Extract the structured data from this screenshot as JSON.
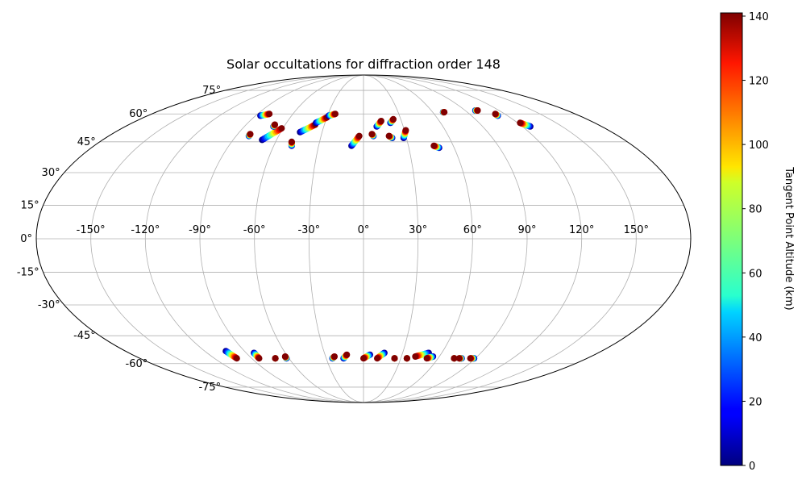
{
  "chart_data": {
    "type": "scatter",
    "projection": "mollweide",
    "title": "Solar occultations for diffraction order 148",
    "lon_tick_labels": [
      "-150°",
      "-120°",
      "-90°",
      "-60°",
      "-30°",
      "0°",
      "30°",
      "60°",
      "90°",
      "120°",
      "150°"
    ],
    "lon_ticks": [
      -150,
      -120,
      -90,
      -60,
      -30,
      0,
      30,
      60,
      90,
      120,
      150
    ],
    "lat_tick_labels": [
      "75°",
      "60°",
      "45°",
      "30°",
      "15°",
      "0°",
      "-15°",
      "-30°",
      "-45°",
      "-60°",
      "-75°"
    ],
    "lat_ticks": [
      75,
      60,
      45,
      30,
      15,
      0,
      -15,
      -30,
      -45,
      -60,
      -75
    ],
    "grid": true,
    "colormap": "jet",
    "colorbar": {
      "label": "Tangent Point Altitude (km)",
      "range": [
        0,
        141
      ],
      "tick_labels": [
        "0",
        "20",
        "40",
        "60",
        "80",
        "100",
        "120",
        "140"
      ],
      "ticks": [
        0,
        20,
        40,
        60,
        80,
        100,
        120,
        140
      ]
    },
    "occultations": [
      {
        "lon0": -86,
        "lat0": 59,
        "lon1": -80,
        "lat1": 60
      },
      {
        "lon0": -81,
        "lat0": 48,
        "lon1": -81,
        "lat1": 49
      },
      {
        "lon0": -70,
        "lat0": 46,
        "lon1": -61,
        "lat1": 52
      },
      {
        "lon0": -68,
        "lat0": 53,
        "lon1": -68,
        "lat1": 54
      },
      {
        "lon0": -48,
        "lat0": 43,
        "lon1": -49,
        "lat1": 45
      },
      {
        "lon0": -46,
        "lat0": 50,
        "lon1": -37,
        "lat1": 54
      },
      {
        "lon0": -37,
        "lat0": 55,
        "lon1": -30,
        "lat1": 58
      },
      {
        "lon0": -29,
        "lat0": 59,
        "lon1": -24,
        "lat1": 60
      },
      {
        "lon0": -8,
        "lat0": 43,
        "lon1": -3,
        "lat1": 48
      },
      {
        "lon0": 7,
        "lat0": 48,
        "lon1": 6,
        "lat1": 49
      },
      {
        "lon0": 10,
        "lat0": 53,
        "lon1": 14,
        "lat1": 56
      },
      {
        "lon0": 20,
        "lat0": 47,
        "lon1": 18,
        "lat1": 48
      },
      {
        "lon0": 21,
        "lat0": 55,
        "lon1": 24,
        "lat1": 57
      },
      {
        "lon0": 28,
        "lat0": 47,
        "lon1": 31,
        "lat1": 51
      },
      {
        "lon0": 50,
        "lat0": 42,
        "lon1": 47,
        "lat1": 43
      },
      {
        "lon0": 69,
        "lat0": 61,
        "lon1": 70,
        "lat1": 61
      },
      {
        "lon0": 99,
        "lat0": 62,
        "lon1": 101,
        "lat1": 62
      },
      {
        "lon0": 112,
        "lat0": 59,
        "lon1": 112,
        "lat1": 60
      },
      {
        "lon0": 126,
        "lat0": 53,
        "lon1": 122,
        "lat1": 55
      },
      {
        "lon0": -104,
        "lat0": -53,
        "lon1": -102,
        "lat1": -57
      },
      {
        "lon0": -84,
        "lat0": -54,
        "lon1": -84,
        "lat1": -57
      },
      {
        "lon0": -71,
        "lat0": -57,
        "lon1": -71,
        "lat1": -57
      },
      {
        "lon0": -62,
        "lat0": -57,
        "lon1": -62,
        "lat1": -56
      },
      {
        "lon0": -25,
        "lat0": -57,
        "lon1": -23,
        "lat1": -56
      },
      {
        "lon0": -16,
        "lat0": -57,
        "lon1": -13,
        "lat1": -55
      },
      {
        "lon0": 5,
        "lat0": -55,
        "lon1": 0,
        "lat1": -57
      },
      {
        "lon0": 16,
        "lat0": -54,
        "lon1": 11,
        "lat1": -57
      },
      {
        "lon0": 25,
        "lat0": -57,
        "lon1": 25,
        "lat1": -57
      },
      {
        "lon0": 35,
        "lat0": -57,
        "lon1": 35,
        "lat1": -57
      },
      {
        "lon0": 50,
        "lat0": -54,
        "lon1": 41,
        "lat1": -56
      },
      {
        "lon0": 55,
        "lat0": -56,
        "lon1": 51,
        "lat1": -57
      },
      {
        "lon0": 73,
        "lat0": -57,
        "lon1": 73,
        "lat1": -57
      },
      {
        "lon0": 79,
        "lat0": -57,
        "lon1": 77,
        "lat1": -57
      },
      {
        "lon0": 89,
        "lat0": -57,
        "lon1": 86,
        "lat1": -57
      }
    ]
  }
}
